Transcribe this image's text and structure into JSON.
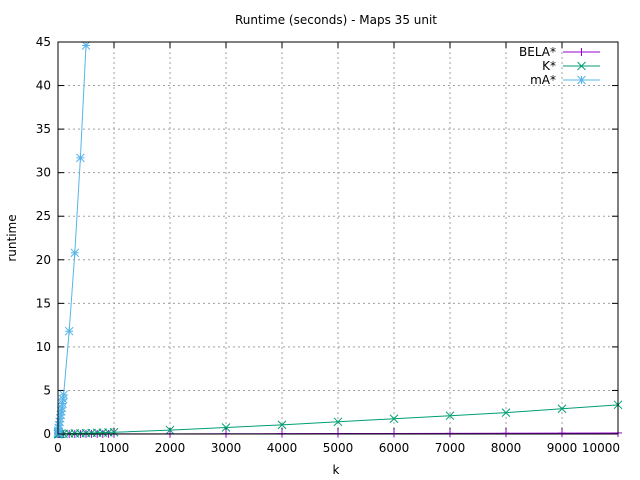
{
  "chart_data": {
    "type": "line",
    "title": "Runtime (seconds) - Maps 35 unit",
    "xlabel": "k",
    "ylabel": "runtime",
    "xlim": [
      0,
      10000
    ],
    "ylim": [
      0,
      45
    ],
    "xticks": [
      0,
      1000,
      2000,
      3000,
      4000,
      5000,
      6000,
      7000,
      8000,
      9000,
      10000
    ],
    "yticks": [
      0,
      5,
      10,
      15,
      20,
      25,
      30,
      35,
      40,
      45
    ],
    "grid": true,
    "legend_position": "top-right",
    "series": [
      {
        "name": "BELA*",
        "color": "#9400d3",
        "marker": "plus",
        "x": [
          1,
          2,
          5,
          10,
          20,
          50,
          100,
          200,
          300,
          400,
          500,
          600,
          700,
          800,
          900,
          1000,
          2000,
          3000,
          4000,
          5000,
          6000,
          7000,
          8000,
          9000,
          10000
        ],
        "y": [
          0.0,
          0.0,
          0.0,
          0.0,
          0.0,
          0.0,
          0.0,
          0.0,
          0.0,
          0.0,
          0.01,
          0.01,
          0.01,
          0.01,
          0.01,
          0.01,
          0.02,
          0.03,
          0.04,
          0.05,
          0.06,
          0.07,
          0.08,
          0.1,
          0.12
        ]
      },
      {
        "name": "K*",
        "color": "#009e73",
        "marker": "cross",
        "x": [
          1,
          2,
          5,
          10,
          20,
          50,
          100,
          200,
          300,
          400,
          500,
          600,
          700,
          800,
          900,
          1000,
          2000,
          3000,
          4000,
          5000,
          6000,
          7000,
          8000,
          9000,
          10000
        ],
        "y": [
          0.0,
          0.0,
          0.0,
          0.0,
          0.01,
          0.02,
          0.03,
          0.05,
          0.07,
          0.08,
          0.1,
          0.12,
          0.14,
          0.16,
          0.18,
          0.2,
          0.45,
          0.75,
          1.05,
          1.4,
          1.75,
          2.1,
          2.45,
          2.9,
          3.35
        ]
      },
      {
        "name": "mA*",
        "color": "#56b4e9",
        "marker": "star",
        "x": [
          1,
          2,
          5,
          10,
          20,
          30,
          40,
          50,
          60,
          70,
          80,
          90,
          100,
          200,
          300,
          400,
          500
        ],
        "y": [
          0.1,
          0.2,
          0.4,
          0.7,
          1.0,
          1.4,
          1.8,
          2.2,
          2.6,
          3.0,
          3.5,
          4.0,
          4.5,
          11.8,
          20.8,
          31.7,
          44.6
        ]
      }
    ]
  }
}
